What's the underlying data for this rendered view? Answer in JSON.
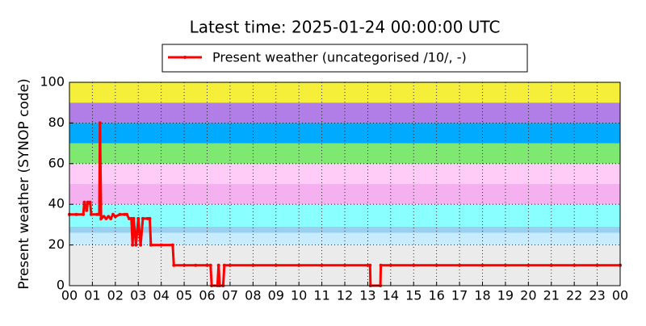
{
  "chart_data": {
    "type": "line",
    "title": "Latest time: 2025-01-24 00:00:00 UTC",
    "y_label": "Present weather (SYNOP code)",
    "legend": "upper center",
    "grid": true,
    "xlim": [
      0,
      24
    ],
    "ylim": [
      0,
      100
    ],
    "yticks": [
      0,
      20,
      40,
      60,
      80,
      100
    ],
    "xticks": [
      {
        "value": 0,
        "label": "00"
      },
      {
        "value": 1,
        "label": "01"
      },
      {
        "value": 2,
        "label": "02"
      },
      {
        "value": 3,
        "label": "03"
      },
      {
        "value": 4,
        "label": "04"
      },
      {
        "value": 5,
        "label": "05"
      },
      {
        "value": 6,
        "label": "06"
      },
      {
        "value": 7,
        "label": "07"
      },
      {
        "value": 8,
        "label": "08"
      },
      {
        "value": 9,
        "label": "09"
      },
      {
        "value": 10,
        "label": "10"
      },
      {
        "value": 11,
        "label": "11"
      },
      {
        "value": 12,
        "label": "12"
      },
      {
        "value": 13,
        "label": "13"
      },
      {
        "value": 14,
        "label": "14"
      },
      {
        "value": 15,
        "label": "15"
      },
      {
        "value": 16,
        "label": "16"
      },
      {
        "value": 17,
        "label": "17"
      },
      {
        "value": 18,
        "label": "18"
      },
      {
        "value": 19,
        "label": "19"
      },
      {
        "value": 20,
        "label": "20"
      },
      {
        "value": 21,
        "label": "21"
      },
      {
        "value": 22,
        "label": "22"
      },
      {
        "value": 23,
        "label": "23"
      },
      {
        "value": 24,
        "label": "00"
      }
    ],
    "bands": [
      {
        "from": 0,
        "to": 20,
        "color": "#ebebeb"
      },
      {
        "from": 20,
        "to": 26,
        "color": "#c8ecff"
      },
      {
        "from": 26,
        "to": 29,
        "color": "#99d0f0"
      },
      {
        "from": 29,
        "to": 40,
        "color": "#8affff"
      },
      {
        "from": 40,
        "to": 50,
        "color": "#f5b0f0"
      },
      {
        "from": 50,
        "to": 60,
        "color": "#ffccf8"
      },
      {
        "from": 60,
        "to": 70,
        "color": "#7ee870"
      },
      {
        "from": 70,
        "to": 80,
        "color": "#00aaff"
      },
      {
        "from": 80,
        "to": 90,
        "color": "#b07ee6"
      },
      {
        "from": 90,
        "to": 100,
        "color": "#f5ef3a"
      }
    ],
    "series": [
      {
        "name": "Present weather (uncategorised /10/, -)",
        "color": "#ff0000",
        "x": [
          0,
          0.3,
          0.6,
          0.65,
          0.75,
          0.8,
          0.9,
          0.95,
          1.2,
          1.3,
          1.33,
          1.38,
          1.5,
          1.6,
          1.7,
          1.8,
          1.9,
          2.0,
          2.2,
          2.4,
          2.5,
          2.6,
          2.7,
          2.75,
          2.8,
          2.9,
          3.0,
          3.1,
          3.2,
          3.4,
          3.5,
          3.55,
          4.0,
          4.5,
          4.55,
          5.0,
          5.5,
          6.0,
          6.15,
          6.2,
          6.45,
          6.5,
          6.55,
          6.7,
          6.75,
          7,
          8,
          9,
          10,
          11,
          12,
          13,
          13.1,
          13.12,
          13.55,
          13.57,
          14,
          15,
          16,
          17,
          18,
          19,
          20,
          21,
          22,
          23,
          24
        ],
        "values": [
          35,
          35,
          35,
          41,
          37,
          41,
          41,
          35,
          35,
          35,
          80,
          33,
          34,
          33,
          34,
          33,
          35,
          34,
          35,
          35,
          35,
          33,
          33,
          20,
          33,
          20,
          33,
          20,
          33,
          33,
          33,
          20,
          20,
          20,
          10,
          10,
          10,
          10,
          10,
          0,
          0,
          10,
          0,
          0,
          10,
          10,
          10,
          10,
          10,
          10,
          10,
          10,
          10,
          0,
          0,
          10,
          10,
          10,
          10,
          10,
          10,
          10,
          10,
          10,
          10,
          10,
          10
        ]
      }
    ]
  }
}
